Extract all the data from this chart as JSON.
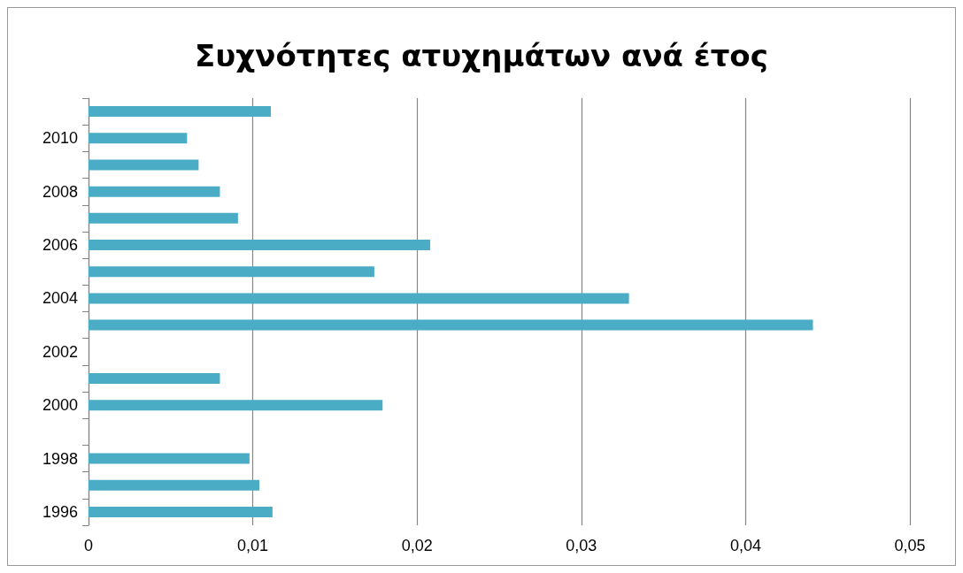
{
  "chart_data": {
    "type": "bar",
    "title": "Συχνότητες ατυχημάτων ανά έτος",
    "orientation": "horizontal",
    "categories": [
      null,
      "2010",
      null,
      "2008",
      null,
      "2006",
      null,
      "2004",
      null,
      "2002",
      null,
      "2000",
      null,
      "1998",
      null,
      "1996"
    ],
    "values": [
      0.0111,
      0.006,
      0.0067,
      0.008,
      0.0091,
      0.0208,
      0.0174,
      0.0329,
      0.0441,
      null,
      0.008,
      0.0179,
      null,
      0.0098,
      0.0104,
      0.0112
    ],
    "color": "#4bacc6",
    "xlim": [
      0,
      0.05
    ],
    "xticks": [
      {
        "value": 0,
        "label": "0"
      },
      {
        "value": 0.01,
        "label": "0,01"
      },
      {
        "value": 0.02,
        "label": "0,02"
      },
      {
        "value": 0.03,
        "label": "0,03"
      },
      {
        "value": 0.04,
        "label": "0,04"
      },
      {
        "value": 0.05,
        "label": "0,05"
      }
    ],
    "grid": "x"
  }
}
